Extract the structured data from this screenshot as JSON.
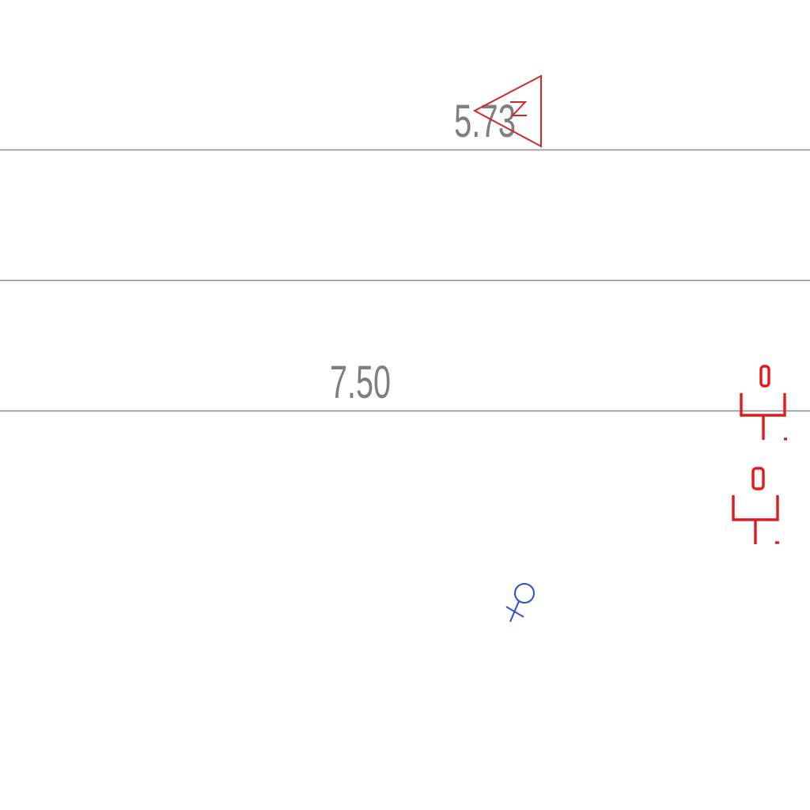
{
  "contour_labels": [
    {
      "text": "5.73"
    },
    {
      "text": "7.50"
    }
  ],
  "symbols": {
    "north_marker": {
      "icon": "north-arrow-triangle-icon",
      "color": "#cc2a2a"
    },
    "field_markers": [
      {
        "icon": "red-tee-marker-icon",
        "color": "#e31a1a"
      },
      {
        "icon": "red-tee-marker-icon",
        "color": "#e31a1a"
      }
    ],
    "point_marker": {
      "icon": "blue-circle-cross-marker-icon",
      "color": "#2a4fd6"
    }
  }
}
